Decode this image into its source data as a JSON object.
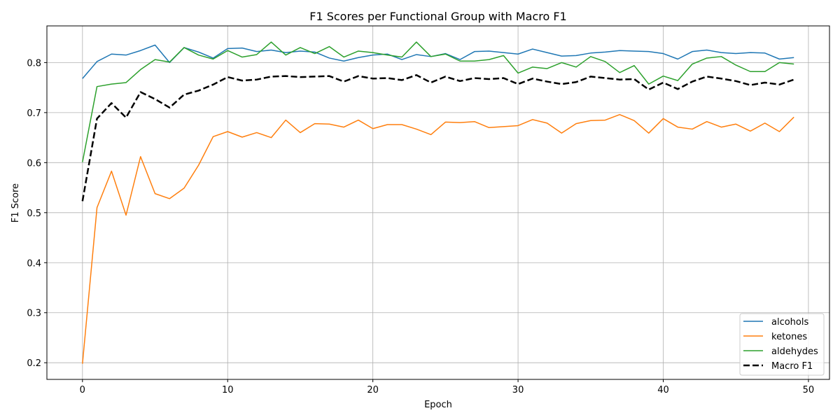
{
  "chart_data": {
    "type": "line",
    "title": "F1 Scores per Functional Group with Macro F1",
    "xlabel": "Epoch",
    "ylabel": "F1 Score",
    "xlim": [
      -2.45,
      51.45
    ],
    "ylim": [
      0.1667,
      0.8733
    ],
    "xticks": [
      0,
      10,
      20,
      30,
      40,
      50
    ],
    "yticks": [
      0.2,
      0.3,
      0.4,
      0.5,
      0.6,
      0.7,
      0.8
    ],
    "grid": true,
    "legend_position": "lower-right",
    "x": [
      0,
      1,
      2,
      3,
      4,
      5,
      6,
      7,
      8,
      9,
      10,
      11,
      12,
      13,
      14,
      15,
      16,
      17,
      18,
      19,
      20,
      21,
      22,
      23,
      24,
      25,
      26,
      27,
      28,
      29,
      30,
      31,
      32,
      33,
      34,
      35,
      36,
      37,
      38,
      39,
      40,
      41,
      42,
      43,
      44,
      45,
      46,
      47,
      48,
      49
    ],
    "series": [
      {
        "name": "alcohols",
        "color": "#1f77b4",
        "style": "solid",
        "values": [
          0.768,
          0.802,
          0.817,
          0.815,
          0.824,
          0.835,
          0.8,
          0.83,
          0.821,
          0.809,
          0.828,
          0.829,
          0.822,
          0.825,
          0.82,
          0.823,
          0.821,
          0.809,
          0.803,
          0.81,
          0.815,
          0.817,
          0.806,
          0.816,
          0.812,
          0.818,
          0.806,
          0.822,
          0.823,
          0.82,
          0.817,
          0.827,
          0.82,
          0.813,
          0.814,
          0.819,
          0.821,
          0.824,
          0.823,
          0.822,
          0.818,
          0.807,
          0.822,
          0.825,
          0.82,
          0.818,
          0.82,
          0.819,
          0.807,
          0.81
        ]
      },
      {
        "name": "ketones",
        "color": "#ff7f0e",
        "style": "solid",
        "values": [
          0.198,
          0.51,
          0.583,
          0.495,
          0.612,
          0.538,
          0.528,
          0.549,
          0.595,
          0.652,
          0.662,
          0.651,
          0.66,
          0.65,
          0.685,
          0.66,
          0.678,
          0.677,
          0.671,
          0.685,
          0.668,
          0.676,
          0.676,
          0.667,
          0.656,
          0.681,
          0.68,
          0.682,
          0.67,
          0.672,
          0.674,
          0.686,
          0.679,
          0.659,
          0.678,
          0.684,
          0.685,
          0.696,
          0.684,
          0.659,
          0.688,
          0.671,
          0.667,
          0.682,
          0.671,
          0.677,
          0.663,
          0.679,
          0.662,
          0.691
        ]
      },
      {
        "name": "aldehydes",
        "color": "#2ca02c",
        "style": "solid",
        "values": [
          0.601,
          0.752,
          0.757,
          0.76,
          0.786,
          0.806,
          0.801,
          0.83,
          0.815,
          0.807,
          0.824,
          0.811,
          0.816,
          0.841,
          0.815,
          0.83,
          0.818,
          0.832,
          0.811,
          0.823,
          0.82,
          0.815,
          0.811,
          0.841,
          0.812,
          0.817,
          0.803,
          0.803,
          0.806,
          0.814,
          0.779,
          0.791,
          0.788,
          0.8,
          0.791,
          0.812,
          0.802,
          0.78,
          0.794,
          0.757,
          0.773,
          0.764,
          0.797,
          0.809,
          0.812,
          0.795,
          0.782,
          0.782,
          0.8,
          0.797
        ]
      },
      {
        "name": "Macro F1",
        "color": "#000000",
        "style": "dashed",
        "values": [
          0.523,
          0.688,
          0.719,
          0.69,
          0.741,
          0.727,
          0.71,
          0.736,
          0.744,
          0.756,
          0.771,
          0.764,
          0.766,
          0.772,
          0.773,
          0.771,
          0.772,
          0.773,
          0.762,
          0.773,
          0.768,
          0.769,
          0.765,
          0.775,
          0.76,
          0.772,
          0.763,
          0.769,
          0.767,
          0.769,
          0.757,
          0.768,
          0.762,
          0.757,
          0.761,
          0.772,
          0.769,
          0.766,
          0.767,
          0.746,
          0.76,
          0.747,
          0.762,
          0.772,
          0.768,
          0.763,
          0.755,
          0.76,
          0.756,
          0.766
        ]
      }
    ]
  }
}
